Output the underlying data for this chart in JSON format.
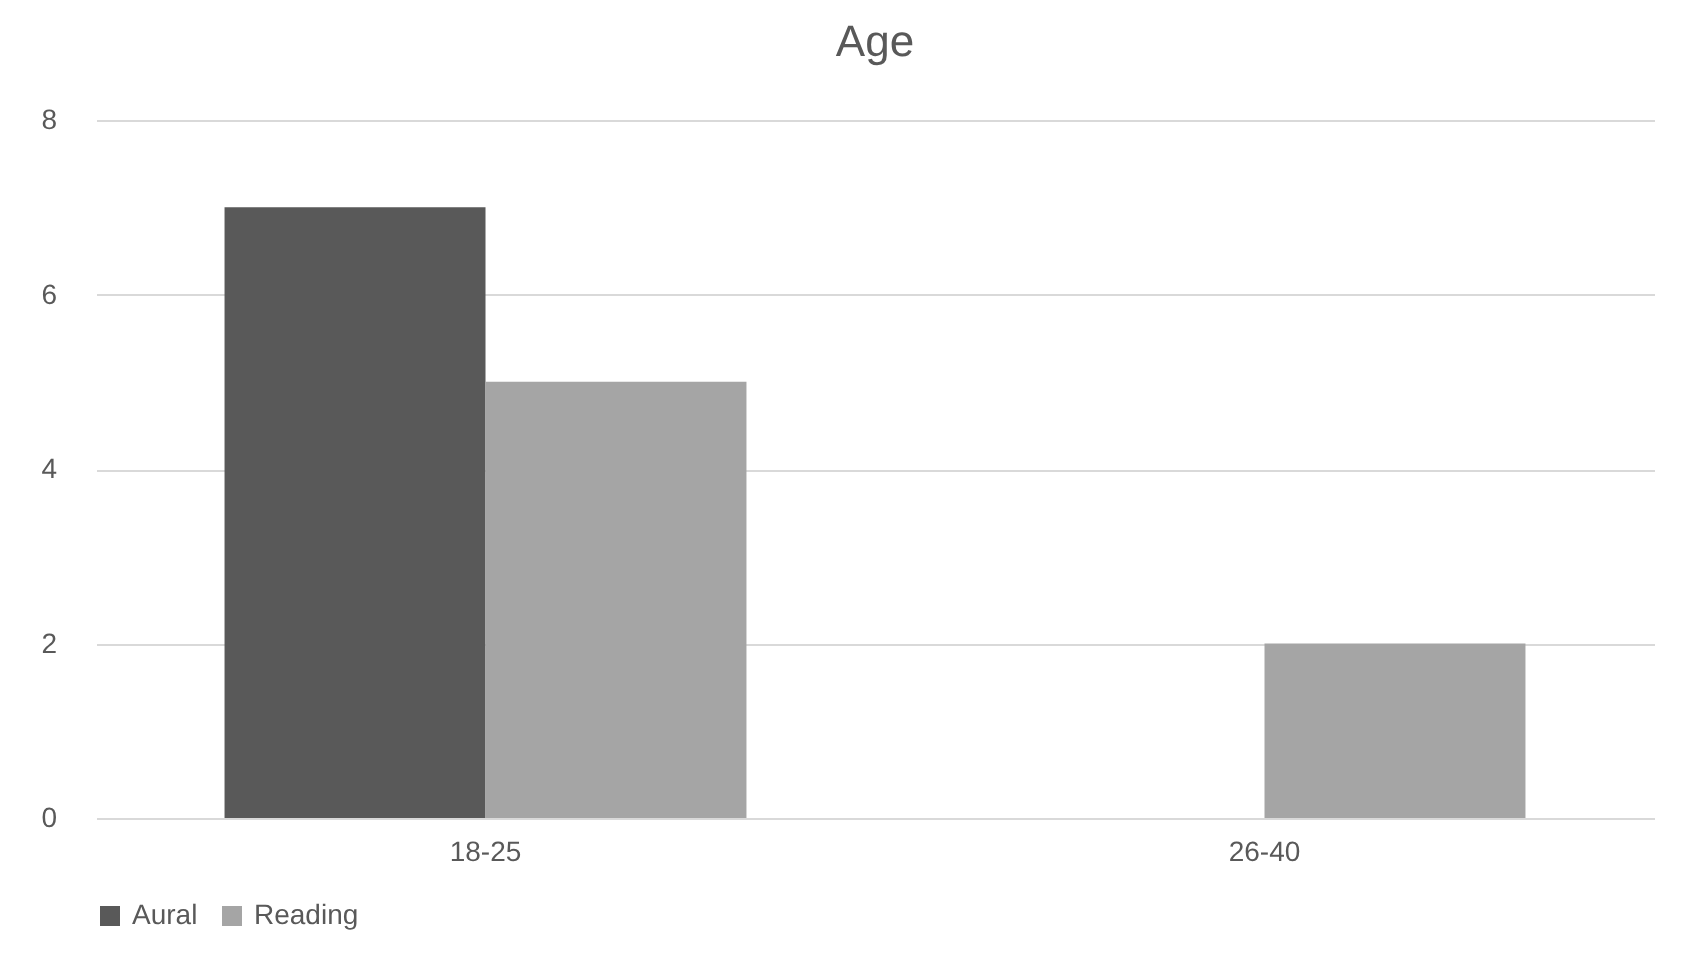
{
  "chart_data": {
    "type": "bar",
    "title": "Age",
    "categories": [
      "18-25",
      "26-40"
    ],
    "series": [
      {
        "name": "Aural",
        "color": "#595959",
        "values": [
          7,
          0
        ]
      },
      {
        "name": "Reading",
        "color": "#a5a5a5",
        "values": [
          5,
          2
        ]
      }
    ],
    "ylim": [
      0,
      8
    ],
    "yticks": [
      0,
      2,
      4,
      6,
      8
    ],
    "grid": "y",
    "legend": "bottom"
  }
}
